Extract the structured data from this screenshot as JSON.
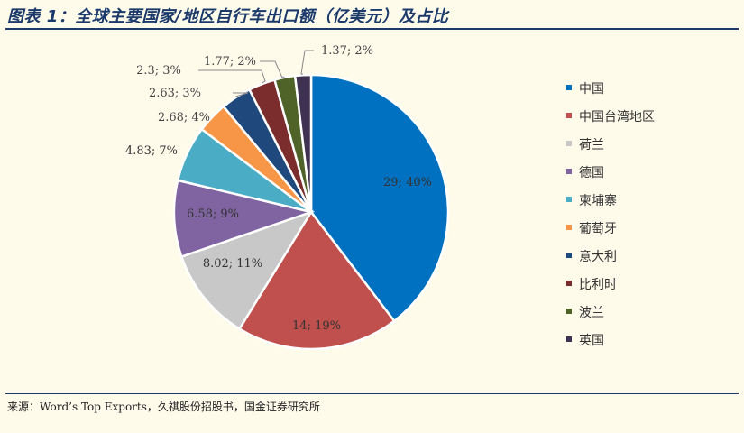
{
  "title": "图表 1：全球主要国家/地区自行车出口额（亿美元）及占比",
  "source": "来源：Word’s Top Exports，久祺股份招股书，国金证券研究所",
  "chart_data": {
    "type": "pie",
    "title": "图表 1：全球主要国家/地区自行车出口额（亿美元）及占比",
    "legend_position": "right",
    "slices": [
      {
        "name": "中国",
        "value": 29,
        "percent": "40%",
        "label": "29; 40%",
        "color": "#0070c0"
      },
      {
        "name": "中国台湾地区",
        "value": 14,
        "percent": "19%",
        "label": "14; 19%",
        "color": "#c0504d"
      },
      {
        "name": "荷兰",
        "value": 8.02,
        "percent": "11%",
        "label": "8.02; 11%",
        "color": "#c8c8c8"
      },
      {
        "name": "德国",
        "value": 6.58,
        "percent": "9%",
        "label": "6.58; 9%",
        "color": "#8064a2"
      },
      {
        "name": "柬埔寨",
        "value": 4.83,
        "percent": "7%",
        "label": "4.83; 7%",
        "color": "#4bacc6"
      },
      {
        "name": "葡萄牙",
        "value": 2.68,
        "percent": "4%",
        "label": "2.68; 4%",
        "color": "#f79646"
      },
      {
        "name": "意大利",
        "value": 2.63,
        "percent": "3%",
        "label": "2.63; 3%",
        "color": "#1f497d"
      },
      {
        "name": "比利时",
        "value": 2.3,
        "percent": "3%",
        "label": "2.3; 3%",
        "color": "#7b2c2c"
      },
      {
        "name": "波兰",
        "value": 1.77,
        "percent": "2%",
        "label": "1.77; 2%",
        "color": "#4f6228"
      },
      {
        "name": "英国",
        "value": 1.37,
        "percent": "2%",
        "label": "1.37; 2%",
        "color": "#3f3151"
      }
    ]
  }
}
